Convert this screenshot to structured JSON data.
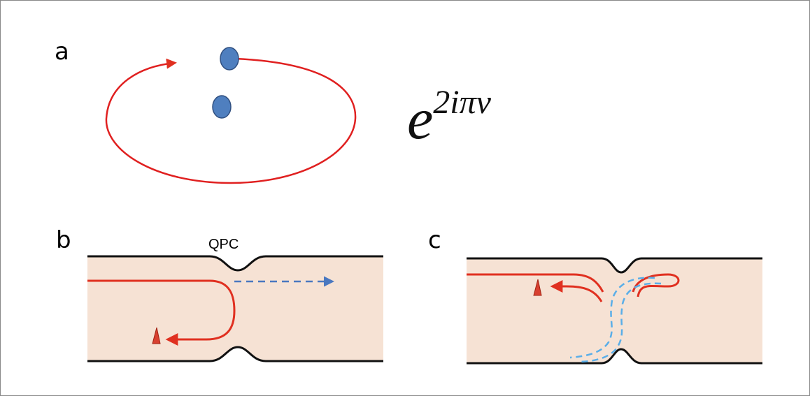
{
  "panels": [
    {
      "label": "a",
      "formula": {
        "base": "e",
        "exponent": "2iπν"
      }
    },
    {
      "label": "b",
      "annotation": "QPC"
    },
    {
      "label": "c"
    }
  ]
}
